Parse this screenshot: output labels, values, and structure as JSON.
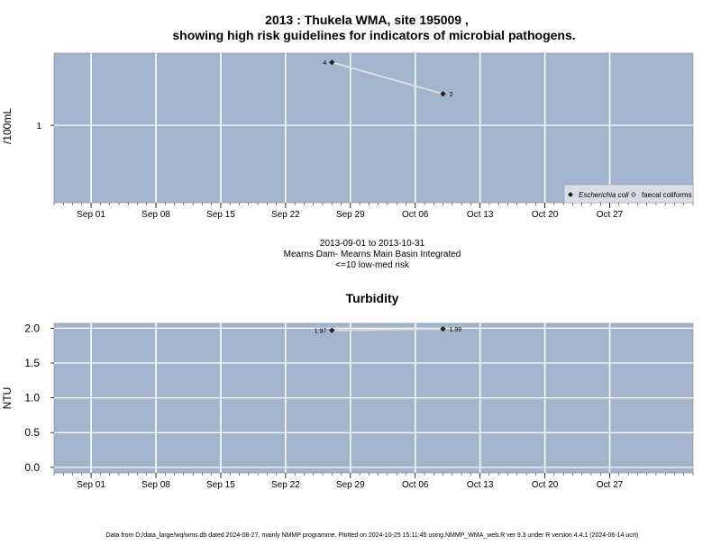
{
  "header": {
    "title_line1": "2013 : Thukela WMA, site 195009 ,",
    "title_line2": "showing high risk guidelines for indicators of microbial pathogens."
  },
  "subtitle": {
    "line1": "2013-09-01 to 2013-10-31",
    "line2": "Mearns Dam- Mearns Main Basin Integrated",
    "line3": "<=10 low-med risk"
  },
  "footer": "Data from D:/data_large/wq/wms.db dated 2024-08-27, mainly NMMP programme. Plotted on 2024-10-25 15:11:45 using NMMP_WMA_web.R ver 9.3 under R version 4.4.1 (2024-06-14 ucrt)",
  "colors": {
    "panel_bg": "#a3b4cc",
    "grid": "#ffffff",
    "line": "#d9dde6",
    "point": "#222222"
  },
  "chart_data": [
    {
      "type": "line",
      "title": "",
      "ylabel": "/100mL",
      "xlabel": "",
      "yscale": "log",
      "x_range": [
        "2013-08-28",
        "2013-11-05"
      ],
      "ylim_log10": [
        -0.74,
        0.69
      ],
      "y_ticks": [
        {
          "value": 1,
          "label": "1"
        }
      ],
      "x_ticks": [
        {
          "date": "2013-09-01",
          "label": "Sep 01"
        },
        {
          "date": "2013-09-08",
          "label": "Sep 08"
        },
        {
          "date": "2013-09-15",
          "label": "Sep 15"
        },
        {
          "date": "2013-09-22",
          "label": "Sep 22"
        },
        {
          "date": "2013-09-29",
          "label": "Sep 29"
        },
        {
          "date": "2013-10-06",
          "label": "Oct 06"
        },
        {
          "date": "2013-10-13",
          "label": "Oct 13"
        },
        {
          "date": "2013-10-20",
          "label": "Oct 20"
        },
        {
          "date": "2013-10-27",
          "label": "Oct 27"
        }
      ],
      "series": [
        {
          "name": "Escherichia coli",
          "points": [
            {
              "x": "2013-09-27",
              "y": 4,
              "label": "4"
            },
            {
              "x": "2013-10-09",
              "y": 2,
              "label": "2"
            }
          ]
        }
      ],
      "legend": {
        "position": "bottom-right",
        "entries": [
          {
            "label": "Escherichia coli",
            "marker": "filled-diamond"
          },
          {
            "label": "faecal coliforms",
            "marker": "open-diamond"
          }
        ]
      },
      "grid": true
    },
    {
      "type": "line",
      "title": "Turbidity",
      "ylabel": "NTU",
      "xlabel": "",
      "yscale": "linear",
      "x_range": [
        "2013-08-28",
        "2013-11-05"
      ],
      "ylim": [
        -0.08,
        2.07
      ],
      "y_ticks": [
        {
          "value": 0.0,
          "label": "0.0"
        },
        {
          "value": 0.5,
          "label": "0.5"
        },
        {
          "value": 1.0,
          "label": "1.0"
        },
        {
          "value": 1.5,
          "label": "1.5"
        },
        {
          "value": 2.0,
          "label": "2.0"
        }
      ],
      "x_ticks": [
        {
          "date": "2013-09-01",
          "label": "Sep 01"
        },
        {
          "date": "2013-09-08",
          "label": "Sep 08"
        },
        {
          "date": "2013-09-15",
          "label": "Sep 15"
        },
        {
          "date": "2013-09-22",
          "label": "Sep 22"
        },
        {
          "date": "2013-09-29",
          "label": "Sep 29"
        },
        {
          "date": "2013-10-06",
          "label": "Oct 06"
        },
        {
          "date": "2013-10-13",
          "label": "Oct 13"
        },
        {
          "date": "2013-10-20",
          "label": "Oct 20"
        },
        {
          "date": "2013-10-27",
          "label": "Oct 27"
        }
      ],
      "series": [
        {
          "name": "",
          "points": [
            {
              "x": "2013-09-27",
              "y": 1.97,
              "label": "1.97"
            },
            {
              "x": "2013-10-09",
              "y": 1.99,
              "label": "1.99"
            }
          ]
        }
      ],
      "grid": true
    }
  ]
}
